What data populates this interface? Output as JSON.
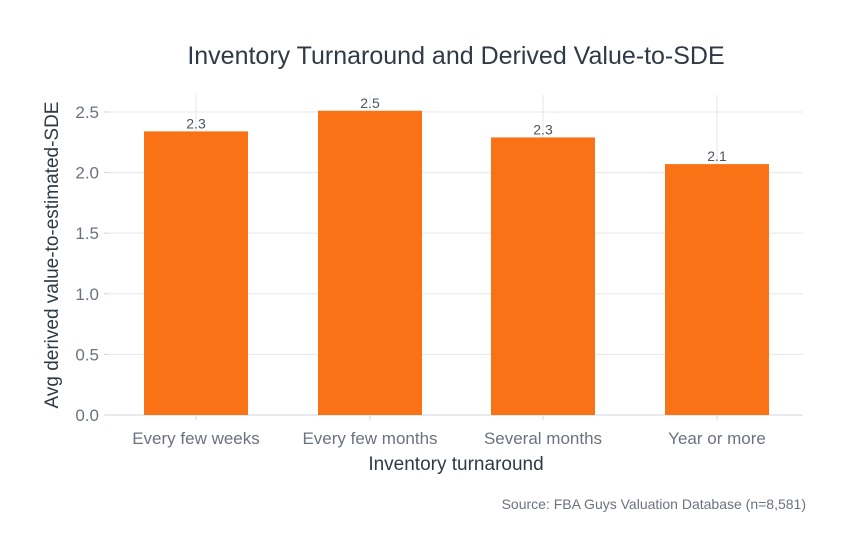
{
  "chart_data": {
    "type": "bar",
    "title": "Inventory Turnaround and Derived Value-to-SDE",
    "xlabel": "Inventory turnaround",
    "ylabel": "Avg derived value-to-estimated-SDE",
    "categories": [
      "Every few weeks",
      "Every few months",
      "Several months",
      "Year or more"
    ],
    "values": [
      2.34,
      2.51,
      2.29,
      2.07
    ],
    "data_labels": [
      "2.3",
      "2.5",
      "2.3",
      "2.1"
    ],
    "yticks": [
      0.0,
      0.5,
      1.0,
      1.5,
      2.0,
      2.5
    ],
    "ytick_labels": [
      "0.0",
      "0.5",
      "1.0",
      "1.5",
      "2.0",
      "2.5"
    ],
    "ylim": [
      0,
      2.64
    ],
    "grid": true,
    "legend": "none",
    "colors": {
      "bar": "#f97316",
      "grid": "#e5e7eb",
      "axis": "#d1d5db"
    }
  },
  "source_note": "Source: FBA Guys Valuation Database (n=8,581)"
}
